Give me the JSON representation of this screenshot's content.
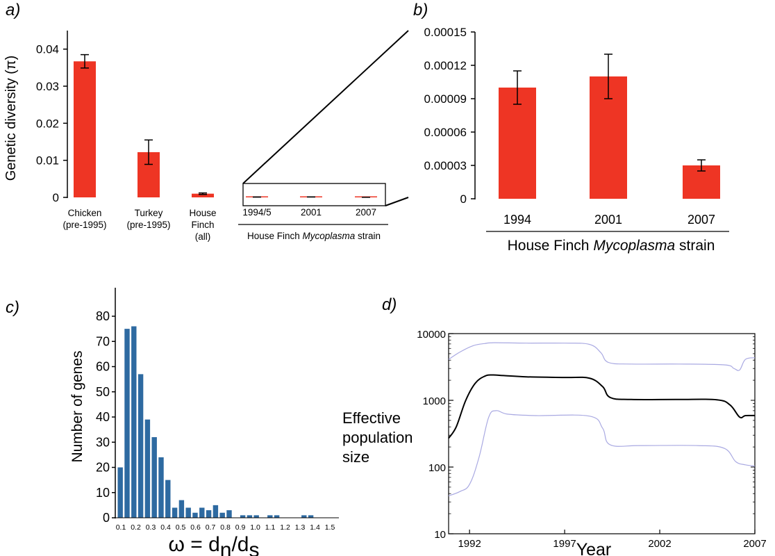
{
  "chart_data": [
    {
      "panel": "a)",
      "type": "bar",
      "ylabel": "Genetic diversity (π)",
      "ylim": [
        0,
        0.045
      ],
      "yticks": [
        "0",
        "0.01",
        "0.02",
        "0.03",
        "0.04"
      ],
      "ytick_values": [
        0,
        0.01,
        0.02,
        0.03,
        0.04
      ],
      "categories": [
        [
          "Chicken",
          "(pre-1995)"
        ],
        [
          "Turkey",
          "(pre-1995)"
        ],
        [
          "House",
          "Finch",
          "(all)"
        ],
        [
          "1994/5"
        ],
        [
          "2001"
        ],
        [
          "2007"
        ]
      ],
      "values": [
        0.0367,
        0.0122,
        0.001,
        0.0001,
        0.00011,
        3e-05
      ],
      "errors": [
        0.0018,
        0.0033,
        0.0002,
        2e-05,
        2e-05,
        5e-06
      ],
      "group_label_prefix": "House Finch ",
      "group_label_italic": "Mycoplasma",
      "group_label_suffix": " strain",
      "color": "#ee3524"
    },
    {
      "panel": "b)",
      "type": "bar",
      "ylim": [
        0,
        0.00015
      ],
      "yticks": [
        "0",
        "0.00003",
        "0.00006",
        "0.00009",
        "0.00012",
        "0.00015"
      ],
      "ytick_values": [
        0,
        3e-05,
        6e-05,
        9e-05,
        0.00012,
        0.00015
      ],
      "categories": [
        "1994",
        "2001",
        "2007"
      ],
      "values": [
        0.0001,
        0.00011,
        3e-05
      ],
      "errors": [
        1.5e-05,
        2e-05,
        5e-06
      ],
      "xlabel_prefix": "House Finch ",
      "xlabel_italic": "Mycoplasma",
      "xlabel_suffix": " strain",
      "color": "#ee3524"
    },
    {
      "panel": "c)",
      "type": "bar",
      "ylabel": "Number of genes",
      "xlabel_main": "ω = d",
      "xlabel_sub1": "n",
      "xlabel_mid": "/d",
      "xlabel_sub2": "s",
      "ylim": [
        0,
        80
      ],
      "yticks": [
        "0",
        "10",
        "20",
        "30",
        "40",
        "50",
        "60",
        "70",
        "80"
      ],
      "ytick_values": [
        0,
        10,
        20,
        30,
        40,
        50,
        60,
        70,
        80
      ],
      "x_tick_labels": [
        "0.1",
        "0.2",
        "0.3",
        "0.4",
        "0.5",
        "0.6",
        "0.7",
        "0.8",
        "0.9",
        "1.0",
        "1.1",
        "1.2",
        "1.3",
        "1.4",
        "1.5"
      ],
      "bin_start": 0.05,
      "bin_width": 0.05,
      "values": [
        20,
        75,
        76,
        57,
        39,
        32,
        24,
        15,
        4,
        7,
        4,
        2,
        4,
        3,
        5,
        2,
        3,
        0,
        1,
        1,
        1,
        0,
        1,
        1,
        0,
        0,
        0,
        1,
        1
      ],
      "color": "#2e6aa1"
    },
    {
      "panel": "d)",
      "type": "line",
      "xlabel": "Year",
      "ylabel": [
        "Effective",
        "population",
        "size"
      ],
      "yscale": "log",
      "ylim": [
        10,
        10000
      ],
      "yticks": [
        "10",
        "100",
        "1000",
        "10000"
      ],
      "ytick_values": [
        10,
        100,
        1000,
        10000
      ],
      "xlim": [
        1990.9,
        2007
      ],
      "xticks": [
        "1992",
        "1997",
        "2002",
        "2007"
      ],
      "xtick_values": [
        1992,
        1997,
        2002,
        2007
      ],
      "series": [
        {
          "role": "upper",
          "color": "#a9a9e2",
          "x": [
            1990.9,
            1991.5,
            1992.2,
            1992.8,
            1993.3,
            1995.0,
            1997.0,
            1998.3,
            1998.9,
            1999.3,
            2000.5,
            2003.0,
            2005.4,
            2005.9,
            2006.2,
            2006.5,
            2007.0
          ],
          "y": [
            4100,
            5300,
            6600,
            7100,
            7300,
            7200,
            7200,
            6900,
            5200,
            3700,
            3500,
            3500,
            3400,
            3000,
            2850,
            4100,
            4350
          ]
        },
        {
          "role": "median",
          "color": "#000000",
          "x": [
            1990.9,
            1991.3,
            1991.8,
            1992.3,
            1992.8,
            1993.2,
            1993.8,
            1995.0,
            1997.0,
            1998.3,
            1999.0,
            1999.4,
            2000.5,
            2003.0,
            2005.0,
            2005.7,
            2006.2,
            2006.5,
            2007.0
          ],
          "y": [
            270,
            400,
            1000,
            1800,
            2300,
            2400,
            2350,
            2250,
            2200,
            2150,
            1600,
            1100,
            1030,
            1030,
            1020,
            850,
            560,
            590,
            590
          ]
        },
        {
          "role": "lower",
          "color": "#a9a9e2",
          "x": [
            1990.9,
            1991.5,
            1992.0,
            1992.5,
            1993.0,
            1993.4,
            1994.0,
            1995.5,
            1998.3,
            1999.0,
            1999.4,
            2001.0,
            2004.0,
            2005.4,
            2006.0,
            2006.5,
            2007.0
          ],
          "y": [
            37,
            43,
            55,
            140,
            550,
            700,
            620,
            590,
            580,
            380,
            215,
            210,
            210,
            190,
            120,
            108,
            103
          ]
        }
      ]
    }
  ]
}
